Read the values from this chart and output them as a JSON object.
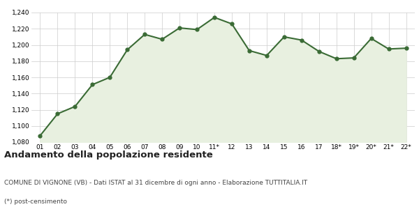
{
  "x_labels": [
    "01",
    "02",
    "03",
    "04",
    "05",
    "06",
    "07",
    "08",
    "09",
    "10",
    "11*",
    "12",
    "13",
    "14",
    "15",
    "16",
    "17",
    "18*",
    "19*",
    "20*",
    "21*",
    "22*"
  ],
  "y_values": [
    1088,
    1115,
    1124,
    1151,
    1160,
    1194,
    1213,
    1207,
    1221,
    1219,
    1234,
    1226,
    1193,
    1187,
    1210,
    1206,
    1192,
    1183,
    1184,
    1208,
    1195,
    1196
  ],
  "line_color": "#3a6b35",
  "fill_color": "#e8f0e0",
  "marker_color": "#3a6b35",
  "bg_color": "#ffffff",
  "grid_color": "#cccccc",
  "ylim_min": 1080,
  "ylim_max": 1240,
  "yticks": [
    1080,
    1100,
    1120,
    1140,
    1160,
    1180,
    1200,
    1220,
    1240
  ],
  "title": "Andamento della popolazione residente",
  "subtitle": "COMUNE DI VIGNONE (VB) - Dati ISTAT al 31 dicembre di ogni anno - Elaborazione TUTTITALIA.IT",
  "footnote": "(*) post-censimento",
  "title_fontsize": 9.5,
  "subtitle_fontsize": 6.5,
  "footnote_fontsize": 6.5,
  "tick_fontsize": 6.5,
  "line_width": 1.5,
  "marker_size": 3.5
}
